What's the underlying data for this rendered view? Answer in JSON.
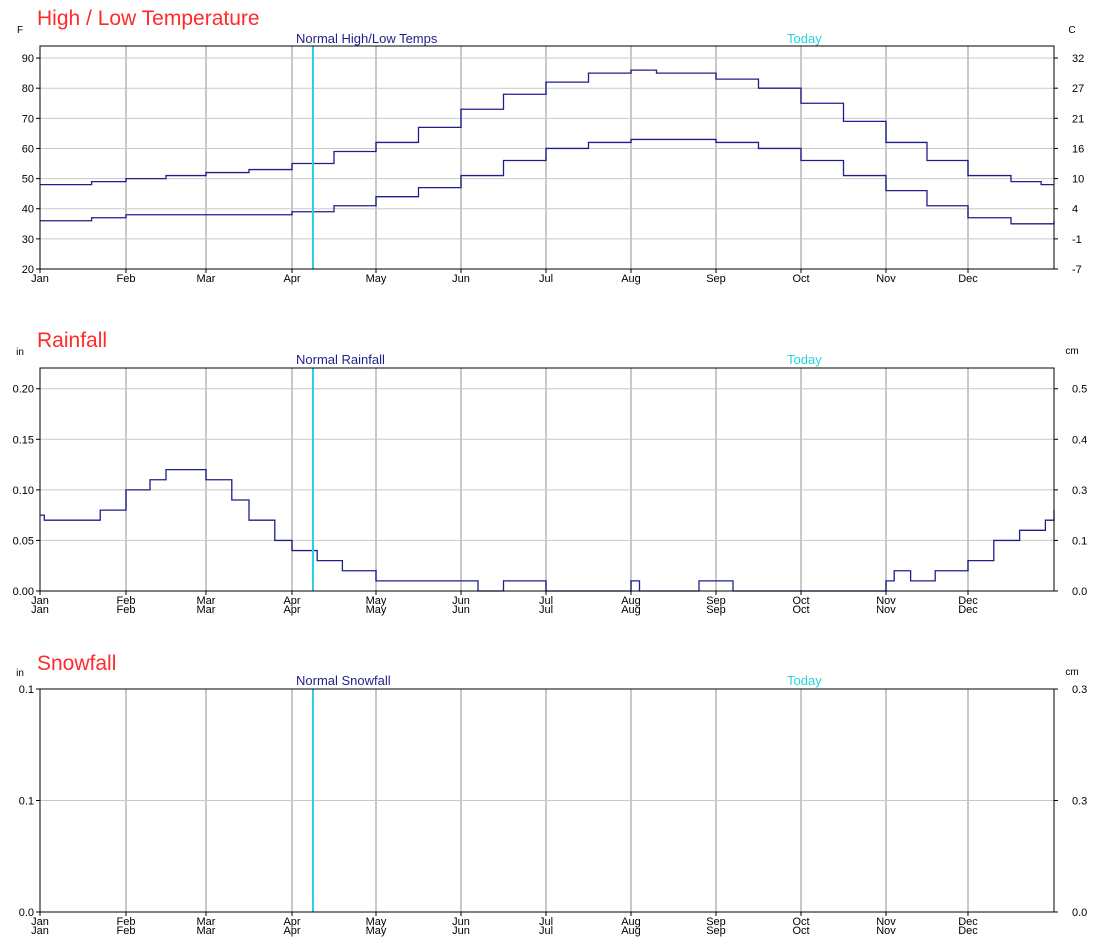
{
  "colors": {
    "title": "#ff2a2a",
    "series": "#1f1f8a",
    "today": "#27d3df",
    "grid": "#c8c8c8",
    "axis": "#000000"
  },
  "chart_data": [
    {
      "type": "line",
      "title": "High / Low Temperature",
      "series_label": "Normal High/Low Temps",
      "today_label": "Today",
      "today_x": 3.25,
      "left_unit": "F",
      "right_unit": "C",
      "y_range": [
        20,
        94
      ],
      "left_ticks": [
        "20",
        "30",
        "40",
        "50",
        "60",
        "70",
        "80",
        "90"
      ],
      "right_ticks": [
        "-7",
        "-1",
        "4",
        "10",
        "16",
        "21",
        "27",
        "32"
      ],
      "x_labels": [
        [
          "Jan"
        ],
        [
          "Feb"
        ],
        [
          "Mar"
        ],
        [
          "Apr"
        ],
        [
          "May"
        ],
        [
          "Jun"
        ],
        [
          "Jul"
        ],
        [
          "Aug"
        ],
        [
          "Sep"
        ],
        [
          "Oct"
        ],
        [
          "Nov"
        ],
        [
          "Dec"
        ]
      ],
      "x_range": [
        0,
        12
      ],
      "grid": true,
      "series": [
        {
          "x": [
            0,
            0.3,
            0.6,
            1.0,
            1.5,
            2.0,
            2.5,
            3.0,
            3.5,
            4.0,
            4.5,
            5.0,
            5.5,
            6.0,
            6.5,
            7.0,
            7.3,
            7.6,
            8.0,
            8.5,
            9.0,
            9.5,
            10.0,
            10.5,
            11.0,
            11.5,
            11.85,
            12.0
          ],
          "values": [
            48,
            48,
            49,
            50,
            51,
            52,
            53,
            55,
            59,
            62,
            67,
            73,
            78,
            82,
            85,
            86,
            85,
            85,
            83,
            80,
            75,
            69,
            62,
            56,
            51,
            49,
            48,
            48
          ]
        },
        {
          "x": [
            0,
            0.3,
            0.6,
            1.0,
            1.5,
            2.0,
            2.5,
            3.0,
            3.5,
            4.0,
            4.5,
            5.0,
            5.5,
            6.0,
            6.5,
            7.0,
            7.3,
            7.6,
            8.0,
            8.5,
            9.0,
            9.5,
            10.0,
            10.5,
            11.0,
            11.5,
            11.85,
            12.0
          ],
          "values": [
            36,
            36,
            37,
            38,
            38,
            38,
            38,
            39,
            41,
            44,
            47,
            51,
            56,
            60,
            62,
            63,
            63,
            63,
            62,
            60,
            56,
            51,
            46,
            41,
            37,
            35,
            35,
            36
          ]
        }
      ]
    },
    {
      "type": "line",
      "title": "Rainfall",
      "series_label": "Normal Rainfall",
      "today_label": "Today",
      "today_x": 3.25,
      "left_unit": "in",
      "right_unit": "cm",
      "y_range": [
        0,
        0.2205
      ],
      "left_ticks": [
        "0.00",
        "0.05",
        "0.10",
        "0.15",
        "0.20"
      ],
      "right_ticks": [
        "0.0",
        "0.1",
        "0.3",
        "0.4",
        "0.5"
      ],
      "x_labels": [
        [
          "Jan",
          "Jan"
        ],
        [
          "Feb",
          "Feb"
        ],
        [
          "Mar",
          "Mar"
        ],
        [
          "Apr",
          "Apr"
        ],
        [
          "May",
          "May"
        ],
        [
          "Jun",
          "Jun"
        ],
        [
          "Jul",
          "Jul"
        ],
        [
          "Aug",
          "Aug"
        ],
        [
          "Sep",
          "Sep"
        ],
        [
          "Oct",
          "Oct"
        ],
        [
          "Nov",
          "Nov"
        ],
        [
          "Dec",
          "Dec"
        ]
      ],
      "x_range": [
        0,
        12
      ],
      "grid": true,
      "series": [
        {
          "x": [
            0,
            0.05,
            0.4,
            0.7,
            1.0,
            1.3,
            1.5,
            1.8,
            2.0,
            2.3,
            2.5,
            2.8,
            3.0,
            3.3,
            3.6,
            4.0,
            4.6,
            5.0,
            5.2,
            5.5,
            6.0,
            6.5,
            6.9,
            7.0,
            7.1,
            7.6,
            7.8,
            8.0,
            8.2,
            10.0,
            10.1,
            10.3,
            10.6,
            11.0,
            11.3,
            11.6,
            11.9,
            12.0
          ],
          "values": [
            0.075,
            0.07,
            0.07,
            0.08,
            0.1,
            0.11,
            0.12,
            0.12,
            0.11,
            0.09,
            0.07,
            0.05,
            0.04,
            0.03,
            0.02,
            0.01,
            0.01,
            0.01,
            0.0,
            0.01,
            0.0,
            0.0,
            0.0,
            0.01,
            0.0,
            0.0,
            0.01,
            0.01,
            0.0,
            0.01,
            0.02,
            0.01,
            0.02,
            0.03,
            0.05,
            0.06,
            0.07,
            0.08
          ]
        }
      ]
    },
    {
      "type": "line",
      "title": "Snowfall",
      "series_label": "Normal Snowfall",
      "today_label": "Today",
      "today_x": 3.25,
      "left_unit": "in",
      "right_unit": "cm",
      "y_range": [
        0,
        0.1
      ],
      "left_ticks": [
        "0.0",
        "0.1",
        "0.1"
      ],
      "right_ticks": [
        "0.0",
        "0.3",
        "0.3"
      ],
      "x_labels": [
        [
          "Jan",
          "Jan"
        ],
        [
          "Feb",
          "Feb"
        ],
        [
          "Mar",
          "Mar"
        ],
        [
          "Apr",
          "Apr"
        ],
        [
          "May",
          "May"
        ],
        [
          "Jun",
          "Jun"
        ],
        [
          "Jul",
          "Jul"
        ],
        [
          "Aug",
          "Aug"
        ],
        [
          "Sep",
          "Sep"
        ],
        [
          "Oct",
          "Oct"
        ],
        [
          "Nov",
          "Nov"
        ],
        [
          "Dec",
          "Dec"
        ]
      ],
      "x_range": [
        0,
        12
      ],
      "grid": true,
      "series": []
    }
  ]
}
